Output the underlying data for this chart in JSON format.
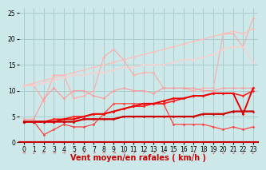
{
  "background_color": "#cce8e8",
  "grid_color": "#aacccc",
  "xlabel": "Vent moyen/en rafales ( km/h )",
  "xlabel_fontsize": 7,
  "tick_fontsize": 5.5,
  "xlim": [
    -0.5,
    23.5
  ],
  "ylim": [
    0,
    26
  ],
  "yticks": [
    0,
    5,
    10,
    15,
    20,
    25
  ],
  "xticks": [
    0,
    1,
    2,
    3,
    4,
    5,
    6,
    7,
    8,
    9,
    10,
    11,
    12,
    13,
    14,
    15,
    16,
    17,
    18,
    19,
    20,
    21,
    22,
    23
  ],
  "series": [
    {
      "comment": "top light pink - noisy, goes up to 24",
      "x": [
        0,
        1,
        2,
        3,
        4,
        5,
        6,
        7,
        8,
        9,
        10,
        11,
        12,
        13,
        14,
        15,
        16,
        17,
        18,
        19,
        20,
        21,
        22,
        23
      ],
      "y": [
        11.0,
        11.0,
        8.0,
        13.0,
        13.0,
        8.5,
        9.0,
        10.0,
        16.5,
        18.0,
        16.0,
        13.0,
        13.5,
        13.5,
        10.5,
        10.5,
        10.5,
        10.0,
        10.5,
        10.5,
        21.0,
        21.0,
        18.5,
        24.0
      ],
      "color": "#ffaaaa",
      "linewidth": 0.8,
      "marker": "D",
      "markersize": 1.8
    },
    {
      "comment": "second light pink - nearly straight diagonal from ~11 to ~22",
      "x": [
        0,
        1,
        2,
        3,
        4,
        5,
        6,
        7,
        8,
        9,
        10,
        11,
        12,
        13,
        14,
        15,
        16,
        17,
        18,
        19,
        20,
        21,
        22,
        23
      ],
      "y": [
        11.0,
        11.5,
        12.0,
        12.5,
        13.0,
        13.5,
        14.0,
        14.5,
        15.0,
        15.5,
        16.0,
        16.5,
        17.0,
        17.5,
        18.0,
        18.5,
        19.0,
        19.5,
        20.0,
        20.5,
        21.0,
        21.5,
        21.0,
        22.0
      ],
      "color": "#ffbbbb",
      "linewidth": 0.8,
      "marker": "D",
      "markersize": 1.8
    },
    {
      "comment": "third pink - starts ~11, gentle rise to ~15, then drops to ~18",
      "x": [
        0,
        1,
        2,
        3,
        4,
        5,
        6,
        7,
        8,
        9,
        10,
        11,
        12,
        13,
        14,
        15,
        16,
        17,
        18,
        19,
        20,
        21,
        22,
        23
      ],
      "y": [
        11.0,
        11.0,
        11.5,
        12.0,
        12.5,
        13.0,
        13.0,
        13.5,
        13.5,
        14.0,
        14.5,
        14.5,
        15.0,
        15.0,
        15.0,
        15.5,
        16.0,
        16.0,
        16.5,
        17.0,
        18.0,
        18.5,
        18.5,
        15.5
      ],
      "color": "#ffcccc",
      "linewidth": 0.8,
      "marker": "D",
      "markersize": 1.8
    },
    {
      "comment": "medium pink noisy - starts ~4.5 goes to ~10.5",
      "x": [
        0,
        1,
        2,
        3,
        4,
        5,
        6,
        7,
        8,
        9,
        10,
        11,
        12,
        13,
        14,
        15,
        16,
        17,
        18,
        19,
        20,
        21,
        22,
        23
      ],
      "y": [
        4.5,
        4.5,
        8.5,
        10.5,
        8.5,
        10.0,
        10.0,
        9.0,
        8.5,
        10.0,
        10.5,
        10.0,
        10.0,
        9.5,
        10.5,
        10.5,
        10.5,
        10.5,
        10.0,
        10.0,
        10.5,
        10.5,
        10.5,
        10.5
      ],
      "color": "#ff9999",
      "linewidth": 0.8,
      "marker": "D",
      "markersize": 1.8
    },
    {
      "comment": "dark red noisy lower - starts ~4, dips to 1.5, goes up to ~7, dips down",
      "x": [
        0,
        1,
        2,
        3,
        4,
        5,
        6,
        7,
        8,
        9,
        10,
        11,
        12,
        13,
        14,
        15,
        16,
        17,
        18,
        19,
        20,
        21,
        22,
        23
      ],
      "y": [
        4.0,
        4.0,
        1.5,
        2.5,
        3.5,
        3.0,
        3.0,
        3.5,
        5.5,
        7.5,
        7.5,
        7.5,
        7.5,
        7.5,
        7.5,
        3.5,
        3.5,
        3.5,
        3.5,
        3.0,
        2.5,
        3.0,
        2.5,
        3.0
      ],
      "color": "#ff4444",
      "linewidth": 0.9,
      "marker": "D",
      "markersize": 1.8
    },
    {
      "comment": "bright red - starts ~4, gently rises to ~10",
      "x": [
        0,
        1,
        2,
        3,
        4,
        5,
        6,
        7,
        8,
        9,
        10,
        11,
        12,
        13,
        14,
        15,
        16,
        17,
        18,
        19,
        20,
        21,
        22,
        23
      ],
      "y": [
        4.0,
        4.0,
        4.0,
        4.5,
        4.5,
        5.0,
        5.0,
        5.5,
        5.5,
        6.0,
        6.5,
        7.0,
        7.0,
        7.5,
        7.5,
        8.0,
        8.5,
        9.0,
        9.0,
        9.5,
        9.5,
        9.5,
        9.0,
        10.0
      ],
      "color": "#ff2222",
      "linewidth": 1.2,
      "marker": "D",
      "markersize": 1.8
    },
    {
      "comment": "dark red diagonal - starts ~4 rises to ~10 with dip at 21",
      "x": [
        0,
        1,
        2,
        3,
        4,
        5,
        6,
        7,
        8,
        9,
        10,
        11,
        12,
        13,
        14,
        15,
        16,
        17,
        18,
        19,
        20,
        21,
        22,
        23
      ],
      "y": [
        4.0,
        4.0,
        4.0,
        4.0,
        4.5,
        4.5,
        5.0,
        5.5,
        5.5,
        6.0,
        6.5,
        7.0,
        7.5,
        7.5,
        8.0,
        8.5,
        8.5,
        9.0,
        9.0,
        9.5,
        9.5,
        9.5,
        5.5,
        10.5
      ],
      "color": "#ee0000",
      "linewidth": 1.4,
      "marker": "D",
      "markersize": 1.8
    },
    {
      "comment": "flattest red line - very slightly rising from ~4 to ~6",
      "x": [
        0,
        1,
        2,
        3,
        4,
        5,
        6,
        7,
        8,
        9,
        10,
        11,
        12,
        13,
        14,
        15,
        16,
        17,
        18,
        19,
        20,
        21,
        22,
        23
      ],
      "y": [
        4.0,
        4.0,
        4.0,
        4.0,
        4.0,
        4.0,
        4.5,
        4.5,
        4.5,
        4.5,
        5.0,
        5.0,
        5.0,
        5.0,
        5.0,
        5.0,
        5.0,
        5.0,
        5.5,
        5.5,
        5.5,
        6.0,
        6.0,
        6.0
      ],
      "color": "#cc0000",
      "linewidth": 1.6,
      "marker": "D",
      "markersize": 1.8
    }
  ],
  "arrow_color": "#cc3333",
  "arrow_chars": [
    "→",
    "↙",
    "←",
    "→",
    "→",
    "↗",
    "↗",
    "↗",
    "→",
    "→",
    "→",
    "↗",
    "↗",
    "↗",
    "→",
    "↑",
    "↑",
    "↗",
    "↗",
    "↙",
    "↙",
    "↙",
    "↙",
    "↙"
  ]
}
